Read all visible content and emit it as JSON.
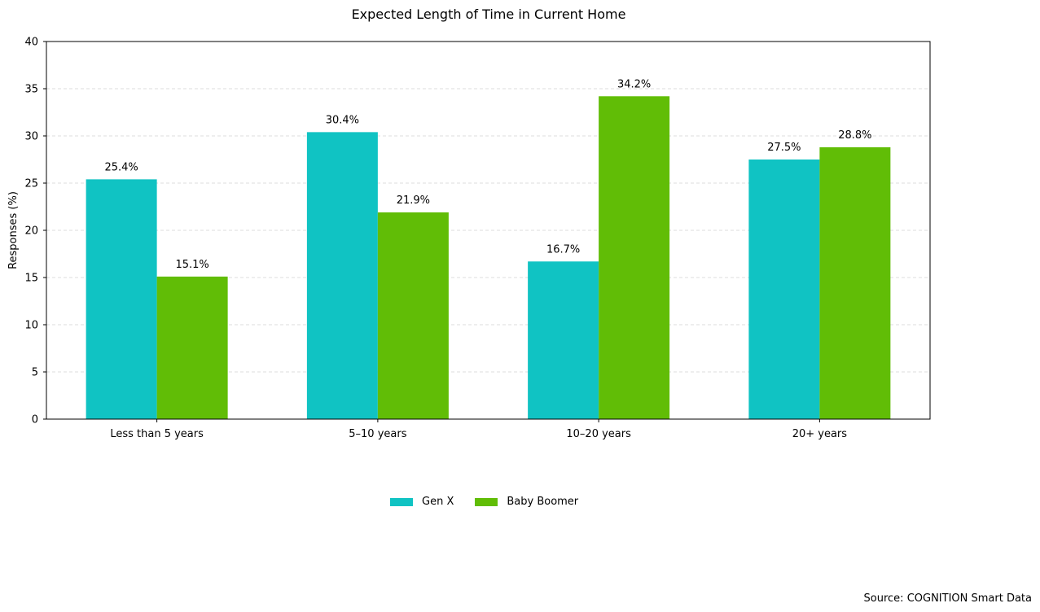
{
  "chart_data": {
    "type": "bar",
    "title": "Expected Length of Time in Current Home",
    "ylabel": "Responses (%)",
    "xlabel": "",
    "categories": [
      "Less than 5 years",
      "5–10 years",
      "10–20 years",
      "20+ years"
    ],
    "series": [
      {
        "name": "Gen X",
        "color": "#10c3c3",
        "values": [
          25.4,
          30.4,
          16.7,
          27.5
        ],
        "labels": [
          "25.4%",
          "30.4%",
          "16.7%",
          "27.5%"
        ]
      },
      {
        "name": "Baby Boomer",
        "color": "#61bd06",
        "values": [
          15.1,
          21.9,
          34.2,
          28.8
        ],
        "labels": [
          "15.1%",
          "21.9%",
          "34.2%",
          "28.8%"
        ]
      }
    ],
    "ylim": [
      0,
      40
    ],
    "yticks": [
      0,
      5,
      10,
      15,
      20,
      25,
      30,
      35,
      40
    ],
    "ytick_labels": [
      "0",
      "5",
      "10",
      "15",
      "20",
      "25",
      "30",
      "35",
      "40"
    ],
    "grid": "horizontal dashed",
    "legend_position": "bottom-center"
  },
  "source": "Source: COGNITION Smart Data"
}
